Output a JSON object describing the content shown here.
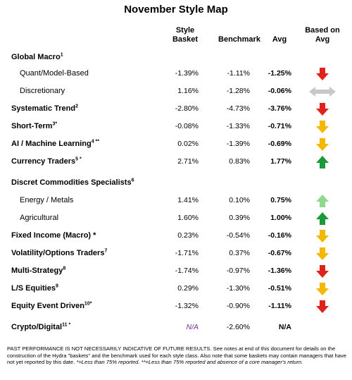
{
  "title": "November Style Map",
  "headers": {
    "style_basket": [
      "Style",
      "Basket"
    ],
    "benchmark": "Benchmark",
    "avg": "Avg",
    "based_on_avg": [
      "Based on",
      "Avg"
    ]
  },
  "colors": {
    "red": "#e0231a",
    "orange": "#f5b800",
    "green": "#1a9a3a",
    "light_green": "#8fd98f",
    "gray": "#c8c8c8",
    "purple": "#7030a0"
  },
  "rows": [
    {
      "label": "Global Macro",
      "sup": "1",
      "bold": true
    },
    {
      "label": "Quant/Model-Based",
      "sup": "",
      "bold": false,
      "basket": "-1.39%",
      "benchmark": "-1.11%",
      "avg": "-1.25%",
      "arrow": "red-down-icon"
    },
    {
      "label": "Discretionary",
      "sup": "",
      "bold": false,
      "basket": "1.16%",
      "benchmark": "-1.28%",
      "avg": "-0.06%",
      "arrow": "gray-left-right-icon"
    },
    {
      "label": "Systematic Trend",
      "sup": "2",
      "bold": true,
      "basket": "-2.80%",
      "benchmark": "-4.73%",
      "avg": "-3.76%",
      "arrow": "red-down-icon"
    },
    {
      "label": "Short-Term",
      "sup": "3*",
      "bold": true,
      "basket": "-0.08%",
      "benchmark": "-1.33%",
      "avg": "-0.71%",
      "arrow": "orange-down-icon"
    },
    {
      "label": "AI / Machine Learning",
      "sup": "4 **",
      "bold": true,
      "basket": "0.02%",
      "benchmark": "-1.39%",
      "avg": "-0.69%",
      "arrow": "orange-down-icon"
    },
    {
      "label": "Currency Traders",
      "sup": "5 *",
      "bold": true,
      "basket": "2.71%",
      "benchmark": "0.83%",
      "avg": "1.77%",
      "arrow": "green-up-icon"
    },
    {
      "label": "Discret Commodities Specialists",
      "sup": "6",
      "bold": true
    },
    {
      "label": "Energy / Metals",
      "sup": "",
      "bold": false,
      "basket": "1.41%",
      "benchmark": "0.10%",
      "avg": "0.75%",
      "arrow": "light-green-up-icon"
    },
    {
      "label": "Agricultural",
      "sup": "",
      "bold": false,
      "basket": "1.60%",
      "benchmark": "0.39%",
      "avg": "1.00%",
      "arrow": "green-up-icon"
    },
    {
      "label": "Fixed Income (Macro) *",
      "sup": "",
      "bold": true,
      "basket": "0.23%",
      "benchmark": "-0.54%",
      "avg": "-0.16%",
      "arrow": "orange-down-icon"
    },
    {
      "label": "Volatility/Options Traders",
      "sup": "7",
      "bold": true,
      "basket": "-1.71%",
      "benchmark": "0.37%",
      "avg": "-0.67%",
      "arrow": "orange-down-icon"
    },
    {
      "label": "Multi-Strategy",
      "sup": "8",
      "bold": true,
      "basket": "-1.74%",
      "benchmark": "-0.97%",
      "avg": "-1.36%",
      "arrow": "red-down-icon"
    },
    {
      "label": "L/S Equities",
      "sup": "9",
      "bold": true,
      "basket": "0.29%",
      "benchmark": "-1.30%",
      "avg": "-0.51%",
      "arrow": "orange-down-icon"
    },
    {
      "label": "Equity Event Driven",
      "sup": "10*",
      "bold": true,
      "basket": "-1.32%",
      "benchmark": "-0.90%",
      "avg": "-1.11%",
      "arrow": "red-down-icon"
    },
    {
      "label": "Crypto/Digital",
      "sup": "11 *",
      "bold": true,
      "basket": "N/A",
      "benchmark": "-2.60%",
      "avg": "N/A",
      "arrow": ""
    }
  ],
  "footnote": {
    "main": "PAST PERFORMANCE IS NOT NECESSARILY INDICATIVE OF FUTURE RESULTS.  See notes at end of this document for details on the construction of the Hydra \"baskets\" and the benchmark used for each style class.  Also note that some baskets may contain managers that have not yet reported by this date.",
    "italic": "*=Less than 75% reported.  **=Less than 75% reported and absence of a core manager's return."
  }
}
